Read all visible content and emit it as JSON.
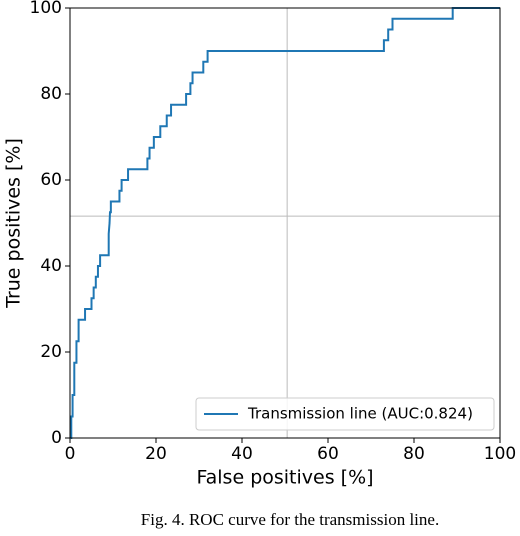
{
  "chart_data": {
    "type": "line",
    "xlabel": "False positives [%]",
    "ylabel": "True positives [%]",
    "caption": "Fig. 4.  ROC curve for the transmission line.",
    "x": [
      0,
      0.3,
      0.3,
      0.6,
      0.6,
      1,
      1,
      1.5,
      1.5,
      2,
      2,
      3.5,
      3.5,
      5,
      5,
      5.5,
      5.5,
      6,
      6,
      6.5,
      6.5,
      7,
      7,
      9,
      9,
      9.2,
      9.3,
      9.5,
      9.5,
      11.5,
      11.5,
      12,
      12,
      13.5,
      13.5,
      18,
      18,
      18.5,
      18.5,
      19.5,
      19.5,
      21,
      21,
      22.5,
      22.5,
      23.5,
      23.5,
      27,
      27,
      28,
      28,
      28.5,
      28.5,
      31,
      31,
      32,
      32,
      73,
      73,
      74,
      74,
      75,
      75,
      89,
      89,
      100
    ],
    "series": [
      {
        "name": "Transmission line (AUC:0.824)",
        "color": "#1f77b4",
        "values": [
          0,
          0,
          5,
          5,
          10,
          10,
          17.5,
          17.5,
          22.5,
          22.5,
          27.5,
          27.5,
          30,
          30,
          32.5,
          32.5,
          35,
          35,
          37.5,
          37.5,
          40,
          40,
          42.5,
          42.5,
          47.5,
          50,
          52.5,
          52.5,
          55,
          55,
          57.5,
          57.5,
          60,
          60,
          62.5,
          62.5,
          65,
          65,
          67.5,
          67.5,
          70,
          70,
          72.5,
          72.5,
          75,
          75,
          77.5,
          77.5,
          80,
          80,
          82.5,
          82.5,
          85,
          85,
          87.5,
          87.5,
          90,
          90,
          92.5,
          92.5,
          95,
          95,
          97.5,
          97.5,
          100,
          100
        ]
      }
    ],
    "xlim": [
      0,
      100
    ],
    "ylim": [
      0,
      100
    ],
    "xticks": [
      0,
      20,
      40,
      60,
      80,
      100
    ],
    "yticks": [
      0,
      20,
      40,
      60,
      80,
      100
    ],
    "vlines": [
      50.5
    ],
    "hlines": [
      51.6
    ],
    "legend": "lower right"
  }
}
